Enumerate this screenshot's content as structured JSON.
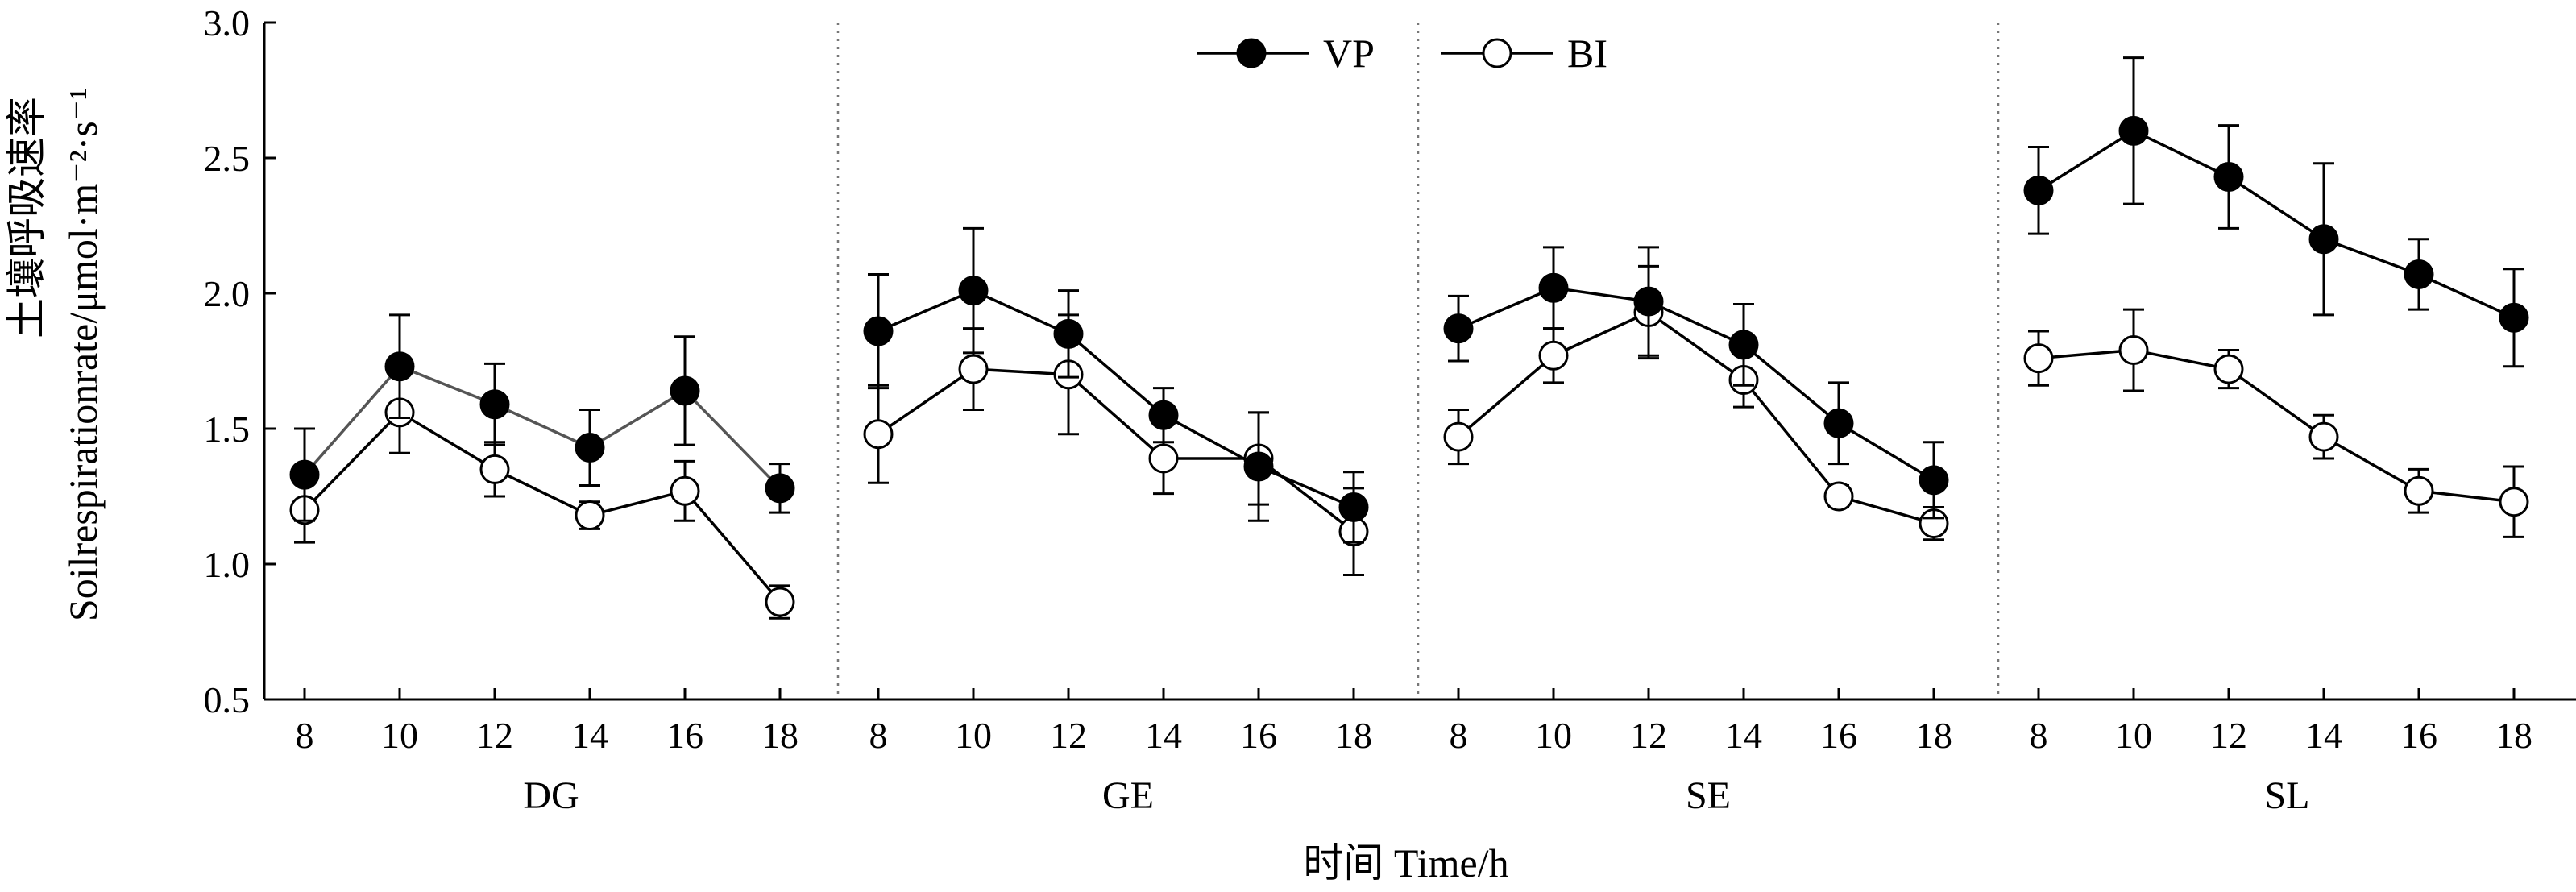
{
  "chart_data": {
    "type": "line",
    "ylabel_cn": "土壤呼吸速率",
    "ylabel_en": "Soilrespirationrate/μmol·m⁻²·s⁻¹",
    "xlabel": "时间 Time/h",
    "ylim": [
      0.5,
      3.0
    ],
    "yticks": [
      "0.5",
      "1.0",
      "1.5",
      "2.0",
      "2.5",
      "3.0"
    ],
    "x": [
      "8",
      "10",
      "12",
      "14",
      "16",
      "18"
    ],
    "legend": [
      {
        "name": "VP",
        "marker": "filled-circle"
      },
      {
        "name": "BI",
        "marker": "open-circle"
      }
    ],
    "legend_position": "top-center",
    "panels": [
      {
        "label": "DG",
        "series": [
          {
            "name": "VP",
            "values": [
              1.33,
              1.73,
              1.59,
              1.43,
              1.64,
              1.28
            ],
            "errors": [
              0.17,
              0.19,
              0.15,
              0.14,
              0.2,
              0.09
            ]
          },
          {
            "name": "BI",
            "values": [
              1.2,
              1.56,
              1.35,
              1.18,
              1.27,
              0.86
            ],
            "errors": [
              0.12,
              0.15,
              0.1,
              0.05,
              0.11,
              0.06
            ]
          }
        ]
      },
      {
        "label": "GE",
        "series": [
          {
            "name": "VP",
            "values": [
              1.86,
              2.01,
              1.85,
              1.55,
              1.36,
              1.21
            ],
            "errors": [
              0.21,
              0.23,
              0.16,
              0.1,
              0.2,
              0.13
            ]
          },
          {
            "name": "BI",
            "values": [
              1.48,
              1.72,
              1.7,
              1.39,
              1.39,
              1.12
            ],
            "errors": [
              0.18,
              0.15,
              0.22,
              0.13,
              0.17,
              0.16
            ]
          }
        ]
      },
      {
        "label": "SE",
        "series": [
          {
            "name": "VP",
            "values": [
              1.87,
              2.02,
              1.97,
              1.81,
              1.52,
              1.31
            ],
            "errors": [
              0.12,
              0.15,
              0.2,
              0.15,
              0.15,
              0.14
            ]
          },
          {
            "name": "BI",
            "values": [
              1.47,
              1.77,
              1.93,
              1.68,
              1.25,
              1.15
            ],
            "errors": [
              0.1,
              0.1,
              0.17,
              0.1,
              0.04,
              0.06
            ]
          }
        ]
      },
      {
        "label": "SL",
        "series": [
          {
            "name": "VP",
            "values": [
              2.38,
              2.6,
              2.43,
              2.2,
              2.07,
              1.91
            ],
            "errors": [
              0.16,
              0.27,
              0.19,
              0.28,
              0.13,
              0.18
            ]
          },
          {
            "name": "BI",
            "values": [
              1.76,
              1.79,
              1.72,
              1.47,
              1.27,
              1.23
            ],
            "errors": [
              0.1,
              0.15,
              0.07,
              0.08,
              0.08,
              0.13
            ]
          }
        ]
      }
    ],
    "colors": {
      "VP_line": "#000000",
      "VP_line_DG": "#555555",
      "BI_line": "#000000",
      "divider": "#777777"
    }
  }
}
